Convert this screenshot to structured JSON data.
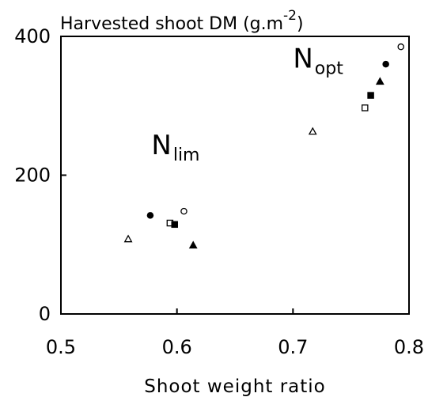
{
  "chart_data": {
    "type": "scatter",
    "title": "Harvested shoot DM (g.m",
    "title_superscript": "-2",
    "title_close": ")",
    "xlabel": "Shoot weight ratio",
    "xlim": [
      0.5,
      0.8
    ],
    "ylim": [
      0,
      400
    ],
    "x_ticks": [
      {
        "value": 0.5,
        "label": "0.5"
      },
      {
        "value": 0.6,
        "label": "0.6"
      },
      {
        "value": 0.7,
        "label": "0.7"
      },
      {
        "value": 0.8,
        "label": "0.8"
      }
    ],
    "y_ticks": [
      {
        "value": 0,
        "label": "0"
      },
      {
        "value": 200,
        "label": "200"
      },
      {
        "value": 400,
        "label": "400"
      }
    ],
    "annotations": [
      {
        "main": "N",
        "sub": "lim",
        "x": 0.578,
        "y": 230
      },
      {
        "main": "N",
        "sub": "opt",
        "x": 0.7,
        "y": 355
      }
    ],
    "points": [
      {
        "marker": "filled-circle",
        "x": 0.577,
        "y": 142
      },
      {
        "marker": "open-triangle",
        "x": 0.558,
        "y": 108
      },
      {
        "marker": "open-square",
        "x": 0.594,
        "y": 131
      },
      {
        "marker": "filled-square",
        "x": 0.598,
        "y": 129
      },
      {
        "marker": "open-circle",
        "x": 0.606,
        "y": 148
      },
      {
        "marker": "filled-triangle",
        "x": 0.614,
        "y": 99
      },
      {
        "marker": "open-triangle",
        "x": 0.717,
        "y": 263
      },
      {
        "marker": "open-square",
        "x": 0.762,
        "y": 297
      },
      {
        "marker": "filled-square",
        "x": 0.767,
        "y": 315
      },
      {
        "marker": "filled-triangle",
        "x": 0.775,
        "y": 335
      },
      {
        "marker": "filled-circle",
        "x": 0.78,
        "y": 360
      },
      {
        "marker": "open-circle",
        "x": 0.793,
        "y": 385
      }
    ]
  }
}
